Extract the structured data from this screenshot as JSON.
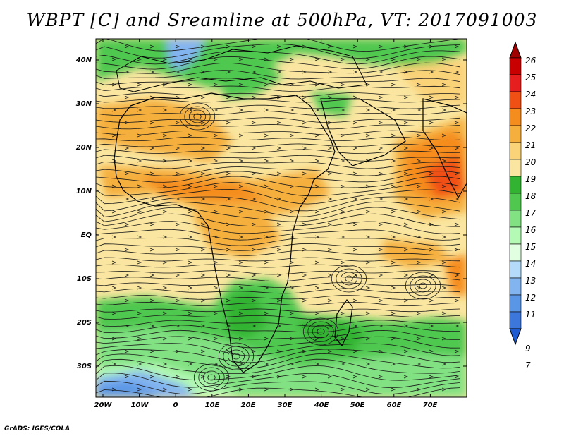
{
  "title": "WBPT [C] and Sreamline at 500hPa, VT: 2017091003",
  "footer": "GrADS: IGES/COLA",
  "lat_ticks": [
    "40N",
    "30N",
    "20N",
    "10N",
    "EQ",
    "10S",
    "20S",
    "30S"
  ],
  "lon_ticks": [
    "20W",
    "10W",
    "0",
    "10E",
    "20E",
    "30E",
    "40E",
    "50E",
    "60E",
    "70E"
  ],
  "colorbar_labels": [
    "26",
    "25",
    "24",
    "23",
    "22",
    "21",
    "20",
    "19",
    "18",
    "17",
    "16",
    "15",
    "14",
    "13",
    "12",
    "11",
    "9",
    "7"
  ],
  "colorbar_colors": [
    "#a00000",
    "#c80000",
    "#e61e1e",
    "#f05014",
    "#f58c1e",
    "#f5af3c",
    "#fad278",
    "#fae6a0",
    "#32b432",
    "#50c850",
    "#82e182",
    "#b4fab4",
    "#e1ffe1",
    "#b4dcfa",
    "#82b4f0",
    "#5a96e6",
    "#3c78dc",
    "#1e5ad2"
  ],
  "map": {
    "region": "Africa / Atlantic / Indian Ocean",
    "lon_range": [
      -22,
      80
    ],
    "lat_range": [
      -37,
      45
    ],
    "level": "500hPa"
  }
}
